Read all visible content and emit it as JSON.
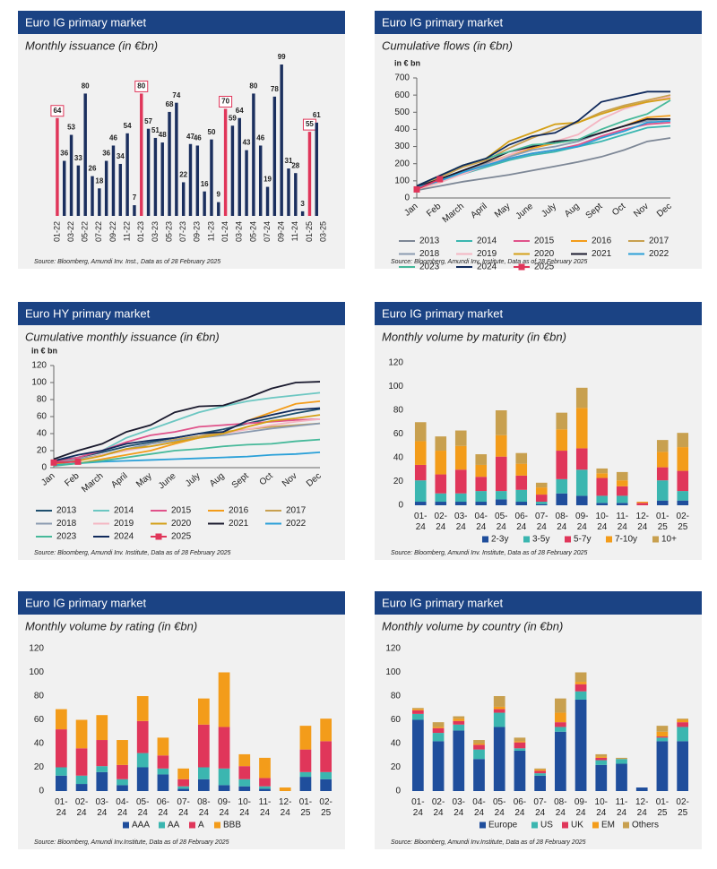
{
  "chart_data": [
    {
      "type": "bar",
      "header": "Euro IG primary market",
      "title": "Monthly issuance (in €bn)",
      "source": "Source: Bloomberg, Amundi Inv. Inst., Data as of 28 February 2025",
      "categories": [
        "01-22",
        null,
        "03-22",
        null,
        "05-22",
        null,
        "07-22",
        null,
        "09-22",
        null,
        "11-22",
        null,
        "01-23",
        null,
        "03-23",
        null,
        "05-23",
        null,
        "07-23",
        null,
        "09-23",
        null,
        "11-23",
        null,
        "01-24",
        null,
        "03-24",
        null,
        "05-24",
        null,
        "07-24",
        null,
        "09-24",
        null,
        "11-24",
        null,
        "01-25",
        null,
        "03-25"
      ],
      "values": [
        64,
        36,
        53,
        33,
        80,
        26,
        18,
        36,
        46,
        34,
        54,
        7,
        80,
        57,
        51,
        48,
        68,
        74,
        22,
        47,
        46,
        16,
        50,
        9,
        70,
        59,
        64,
        43,
        80,
        46,
        19,
        78,
        99,
        31,
        28,
        3,
        55,
        61,
        null
      ],
      "colors": [
        "#e0365a",
        "#1b2f5e",
        "#1b2f5e",
        "#1b2f5e",
        "#1b2f5e",
        "#1b2f5e",
        "#1b2f5e",
        "#1b2f5e",
        "#1b2f5e",
        "#1b2f5e",
        "#1b2f5e",
        "#1b2f5e",
        "#e0365a",
        "#1b2f5e",
        "#1b2f5e",
        "#1b2f5e",
        "#1b2f5e",
        "#1b2f5e",
        "#1b2f5e",
        "#1b2f5e",
        "#1b2f5e",
        "#1b2f5e",
        "#1b2f5e",
        "#1b2f5e",
        "#e0365a",
        "#1b2f5e",
        "#1b2f5e",
        "#1b2f5e",
        "#1b2f5e",
        "#1b2f5e",
        "#1b2f5e",
        "#1b2f5e",
        "#1b2f5e",
        "#1b2f5e",
        "#1b2f5e",
        "#1b2f5e",
        "#e0365a",
        "#1b2f5e",
        "#1b2f5e"
      ]
    },
    {
      "type": "line",
      "header": "Euro IG primary market",
      "title": "Cumulative flows (in €bn)",
      "y_label": "in € bn",
      "source": "Source: Bloomberg, Amundi Inv. Institute, Data as of 28 February 2025",
      "categories": [
        "Jan",
        "Feb",
        "March",
        "April",
        "May",
        "June",
        "July",
        "Aug",
        "Sept",
        "Oct",
        "Nov",
        "Dec"
      ],
      "ylim": [
        0,
        700
      ],
      "yticks": [
        0,
        100,
        200,
        300,
        400,
        500,
        600,
        700
      ],
      "legend": "bottom",
      "series": [
        {
          "name": "2013",
          "color": "#7d8796",
          "values": [
            45,
            70,
            95,
            115,
            135,
            160,
            185,
            210,
            240,
            280,
            330,
            350
          ]
        },
        {
          "name": "2014",
          "color": "#3bb6b0",
          "values": [
            60,
            100,
            140,
            180,
            220,
            250,
            270,
            300,
            330,
            370,
            410,
            420
          ]
        },
        {
          "name": "2015",
          "color": "#e0528a",
          "values": [
            55,
            95,
            140,
            190,
            230,
            260,
            280,
            310,
            360,
            400,
            430,
            440
          ]
        },
        {
          "name": "2016",
          "color": "#f39c1a",
          "values": [
            50,
            90,
            150,
            200,
            250,
            290,
            320,
            340,
            380,
            420,
            470,
            480
          ]
        },
        {
          "name": "2017",
          "color": "#c8a04f",
          "values": [
            60,
            120,
            180,
            220,
            290,
            350,
            400,
            440,
            500,
            540,
            570,
            600
          ]
        },
        {
          "name": "2018",
          "color": "#8a9ab0",
          "values": [
            55,
            100,
            150,
            200,
            240,
            280,
            300,
            330,
            380,
            420,
            450,
            460
          ]
        },
        {
          "name": "2019",
          "color": "#f4b6c2",
          "values": [
            50,
            90,
            140,
            190,
            250,
            300,
            330,
            370,
            460,
            520,
            560,
            590
          ]
        },
        {
          "name": "2020",
          "color": "#d4a017",
          "values": [
            70,
            130,
            190,
            230,
            330,
            380,
            430,
            440,
            490,
            530,
            560,
            580
          ]
        },
        {
          "name": "2021",
          "color": "#1a1a2e",
          "values": [
            65,
            110,
            160,
            210,
            270,
            300,
            330,
            340,
            380,
            420,
            460,
            460
          ]
        },
        {
          "name": "2022",
          "color": "#2aa0d8",
          "values": [
            60,
            100,
            150,
            190,
            230,
            260,
            280,
            300,
            350,
            390,
            440,
            450
          ]
        },
        {
          "name": "2023",
          "color": "#46b99a",
          "values": [
            70,
            130,
            190,
            230,
            270,
            310,
            320,
            340,
            400,
            450,
            490,
            570
          ]
        },
        {
          "name": "2024",
          "color": "#102a5c",
          "values": [
            70,
            130,
            190,
            230,
            310,
            360,
            380,
            450,
            560,
            590,
            620,
            620
          ]
        },
        {
          "name": "2025",
          "color": "#e0365a",
          "marker": "square",
          "values": [
            50,
            110,
            null,
            null,
            null,
            null,
            null,
            null,
            null,
            null,
            null,
            null
          ]
        }
      ]
    },
    {
      "type": "line",
      "header": "Euro HY primary market",
      "title": "Cumulative monthly issuance (in €bn)",
      "y_label": "in € bn",
      "source": "Source: Bloomberg, Amundi Inv. Institute, Data as of 28 February 2025",
      "categories": [
        "Jan",
        "Feb",
        "March",
        "April",
        "May",
        "June",
        "July",
        "Aug",
        "Sept",
        "Oct",
        "Nov",
        "Dec"
      ],
      "ylim": [
        0,
        120
      ],
      "yticks": [
        0,
        20,
        40,
        60,
        80,
        100,
        120
      ],
      "legend": "bottom",
      "series": [
        {
          "name": "2013",
          "color": "#1f4f6e",
          "values": [
            8,
            12,
            18,
            25,
            30,
            35,
            40,
            45,
            52,
            58,
            64,
            69
          ]
        },
        {
          "name": "2014",
          "color": "#6cc7c2",
          "values": [
            5,
            12,
            20,
            35,
            45,
            55,
            65,
            72,
            78,
            82,
            85,
            88
          ]
        },
        {
          "name": "2015",
          "color": "#e0528a",
          "values": [
            6,
            12,
            20,
            30,
            38,
            42,
            48,
            50,
            52,
            54,
            56,
            57
          ]
        },
        {
          "name": "2016",
          "color": "#f39c1a",
          "values": [
            3,
            5,
            10,
            15,
            20,
            28,
            35,
            42,
            55,
            65,
            75,
            78
          ]
        },
        {
          "name": "2017",
          "color": "#c8a04f",
          "values": [
            5,
            10,
            15,
            20,
            28,
            33,
            37,
            42,
            45,
            48,
            50,
            52
          ]
        },
        {
          "name": "2018",
          "color": "#8a9ab0",
          "values": [
            5,
            10,
            15,
            22,
            28,
            32,
            35,
            38,
            42,
            46,
            49,
            52
          ]
        },
        {
          "name": "2019",
          "color": "#f4b6c2",
          "values": [
            3,
            8,
            15,
            20,
            25,
            30,
            35,
            40,
            45,
            50,
            54,
            57
          ]
        },
        {
          "name": "2020",
          "color": "#d4a017",
          "values": [
            4,
            8,
            14,
            22,
            25,
            30,
            35,
            40,
            48,
            55,
            58,
            62
          ]
        },
        {
          "name": "2021",
          "color": "#1a1a2e",
          "values": [
            10,
            20,
            28,
            42,
            50,
            65,
            72,
            73,
            82,
            93,
            100,
            101
          ]
        },
        {
          "name": "2022",
          "color": "#2aa0d8",
          "values": [
            3,
            5,
            7,
            8,
            9,
            10,
            11,
            12,
            13,
            15,
            16,
            18
          ]
        },
        {
          "name": "2023",
          "color": "#46b99a",
          "values": [
            2,
            5,
            8,
            12,
            16,
            20,
            22,
            25,
            27,
            28,
            31,
            33
          ]
        },
        {
          "name": "2024",
          "color": "#102a5c",
          "values": [
            8,
            15,
            20,
            28,
            32,
            35,
            40,
            42,
            55,
            62,
            68,
            70
          ]
        },
        {
          "name": "2025",
          "color": "#e0365a",
          "marker": "square",
          "values": [
            6,
            7,
            null,
            null,
            null,
            null,
            null,
            null,
            null,
            null,
            null,
            null
          ]
        }
      ]
    },
    {
      "type": "stacked_bar",
      "header": "Euro IG primary market",
      "title": "Monthly volume by maturity (in €bn)",
      "source": "Source: Bloomberg, Amundi Inv. Institute, Data as of 28 February 2025",
      "categories": [
        "01-24",
        "02-24",
        "03-24",
        "04-24",
        "05-24",
        "06-24",
        "07-24",
        "08-24",
        "09-24",
        "10-24",
        "11-24",
        "12-24",
        "01-25",
        "02-25"
      ],
      "ylim": [
        0,
        120
      ],
      "yticks": [
        0,
        20,
        40,
        60,
        80,
        100,
        120
      ],
      "legend": "bottom",
      "series": [
        {
          "name": "2-3y",
          "color": "#1f4e9c",
          "values": [
            3,
            3,
            3,
            3,
            5,
            3,
            1,
            10,
            8,
            2,
            2,
            0,
            4,
            4
          ]
        },
        {
          "name": "3-5y",
          "color": "#3bb6b0",
          "values": [
            18,
            7,
            7,
            9,
            7,
            10,
            2,
            12,
            22,
            6,
            6,
            0,
            17,
            8
          ]
        },
        {
          "name": "5-7y",
          "color": "#e0365a",
          "values": [
            13,
            16,
            20,
            12,
            29,
            12,
            6,
            24,
            18,
            15,
            8,
            2,
            11,
            17
          ]
        },
        {
          "name": "7-10y",
          "color": "#f39c1a",
          "values": [
            20,
            20,
            20,
            10,
            18,
            10,
            6,
            18,
            34,
            4,
            5,
            1,
            13,
            20
          ]
        },
        {
          "name": "10+",
          "color": "#c8a04f",
          "values": [
            16,
            12,
            13,
            9,
            21,
            9,
            4,
            14,
            17,
            4,
            7,
            0,
            10,
            12
          ]
        }
      ]
    },
    {
      "type": "stacked_bar",
      "header": "Euro IG primary market",
      "title": "Monthly volume by rating (in €bn)",
      "source": "Source: Bloomberg, Amundi Inv.Institute, Data as of 28 February 2025",
      "categories": [
        "01-24",
        "02-24",
        "03-24",
        "04-24",
        "05-24",
        "06-24",
        "07-24",
        "08-24",
        "09-24",
        "10-24",
        "11-24",
        "12-24",
        "01-25",
        "02-25"
      ],
      "ylim": [
        0,
        120
      ],
      "yticks": [
        0,
        20,
        40,
        60,
        80,
        100,
        120
      ],
      "legend": "bottom",
      "series": [
        {
          "name": "AAA",
          "color": "#1f4e9c",
          "values": [
            13,
            6,
            16,
            5,
            20,
            14,
            2,
            10,
            5,
            4,
            2,
            0,
            12,
            10
          ]
        },
        {
          "name": "AA",
          "color": "#3bb6b0",
          "values": [
            7,
            7,
            5,
            5,
            12,
            5,
            2,
            10,
            14,
            6,
            2,
            0,
            4,
            6
          ]
        },
        {
          "name": "A",
          "color": "#e0365a",
          "values": [
            32,
            23,
            22,
            12,
            27,
            11,
            6,
            36,
            35,
            11,
            7,
            0,
            19,
            26
          ]
        },
        {
          "name": "BBB",
          "color": "#f39c1a",
          "values": [
            17,
            24,
            21,
            21,
            21,
            15,
            9,
            22,
            46,
            10,
            17,
            3,
            20,
            19
          ]
        }
      ]
    },
    {
      "type": "stacked_bar",
      "header": "Euro IG primary market",
      "title": "Monthly volume by country (in €bn)",
      "source": "Source: Bloomberg, Amundi Inv.Institute, Data as of 28 February 2025",
      "categories": [
        "01-24",
        "02-24",
        "03-24",
        "04-24",
        "05-24",
        "06-24",
        "07-24",
        "08-24",
        "09-24",
        "10-24",
        "11-24",
        "12-24",
        "01-25",
        "02-25"
      ],
      "ylim": [
        0,
        120
      ],
      "yticks": [
        0,
        20,
        40,
        60,
        80,
        100,
        120
      ],
      "legend": "bottom",
      "series": [
        {
          "name": "Europe",
          "color": "#1f4e9c",
          "values": [
            60,
            42,
            51,
            27,
            54,
            34,
            13,
            50,
            77,
            22,
            23,
            3,
            42,
            42
          ]
        },
        {
          "name": "US",
          "color": "#3bb6b0",
          "values": [
            5,
            7,
            5,
            8,
            12,
            2,
            2,
            4,
            7,
            4,
            4,
            0,
            3,
            12
          ]
        },
        {
          "name": "UK",
          "color": "#e0365a",
          "values": [
            3,
            4,
            3,
            4,
            3,
            5,
            2,
            4,
            6,
            2,
            0,
            0,
            1,
            4
          ]
        },
        {
          "name": "EM",
          "color": "#f39c1a",
          "values": [
            1,
            1,
            2,
            1,
            2,
            1,
            1,
            8,
            2,
            1,
            0,
            0,
            4,
            2
          ]
        },
        {
          "name": "Others",
          "color": "#c8a04f",
          "values": [
            1,
            4,
            2,
            3,
            9,
            3,
            1,
            12,
            8,
            2,
            1,
            0,
            5,
            1
          ]
        }
      ]
    }
  ]
}
